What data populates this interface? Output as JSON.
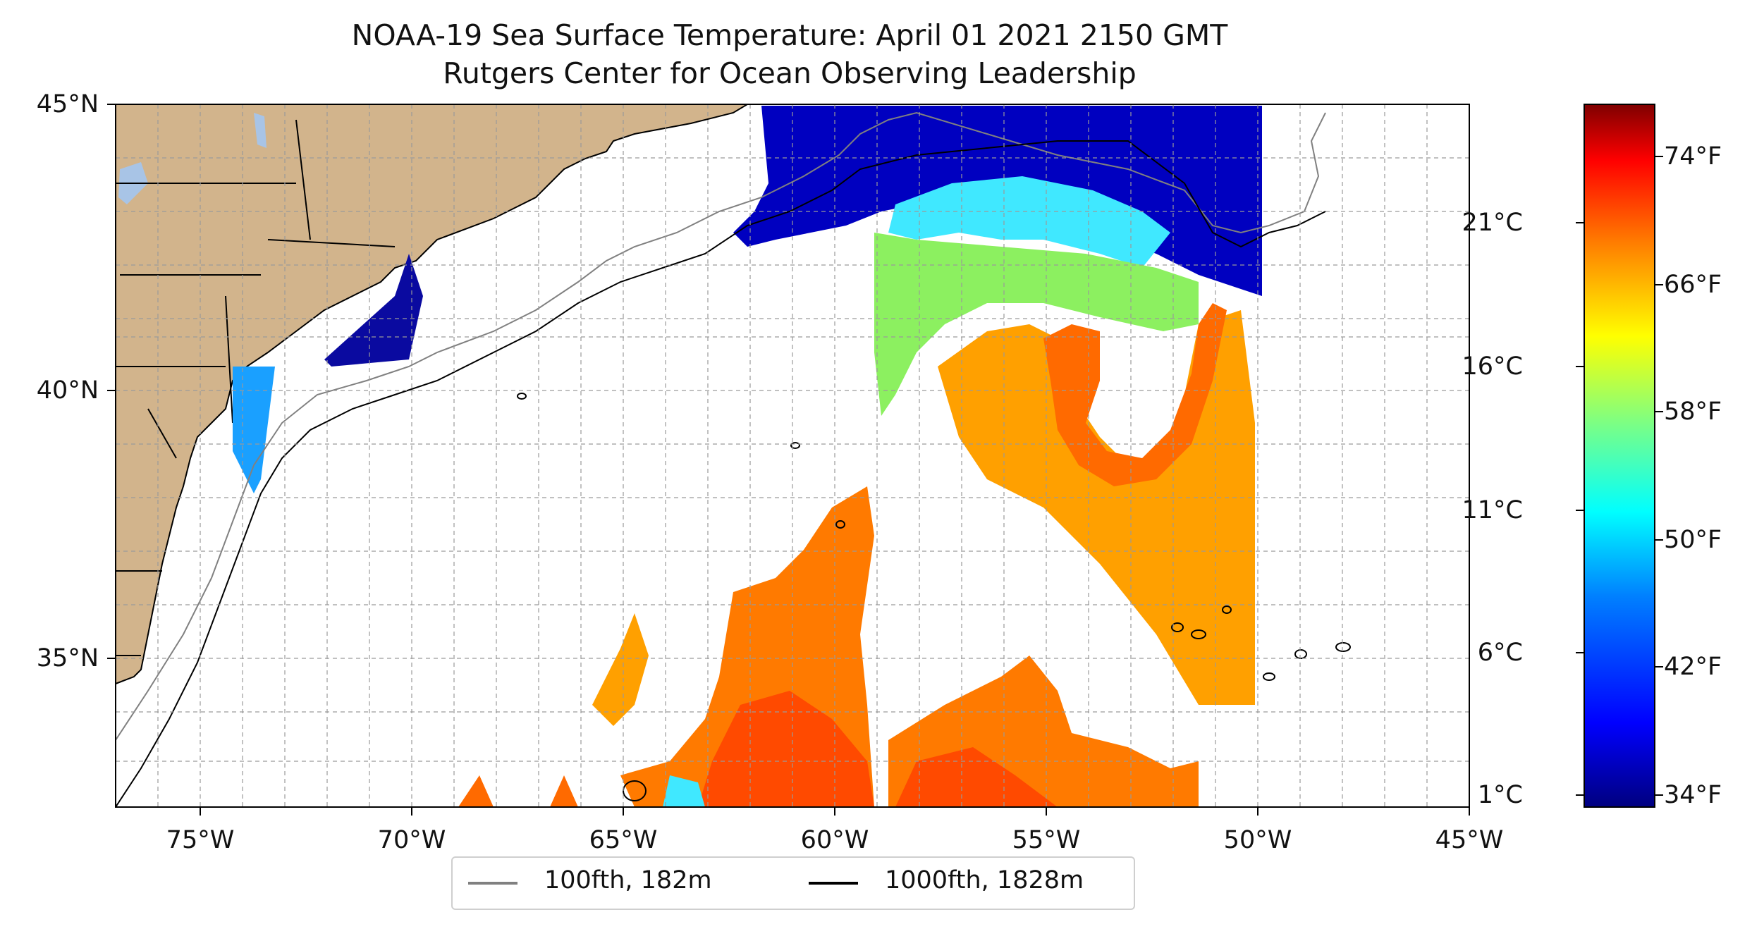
{
  "title": {
    "line1": "NOAA-19 Sea Surface Temperature: April 01 2021 2150 GMT",
    "line2": "Rutgers Center for Ocean Observing Leadership"
  },
  "map": {
    "lat_labels": [
      "45°N",
      "40°N",
      "35°N"
    ],
    "lon_labels": [
      "75°W",
      "70°W",
      "65°W",
      "60°W",
      "55°W",
      "50°W",
      "45°W"
    ],
    "extent": {
      "lon_min": -77,
      "lon_max": -45,
      "lat_min": 32.3,
      "lat_max": 45
    },
    "land_color": "#d2b48c",
    "lake_color": "#a8c4e6",
    "gridlines": true
  },
  "colorbar": {
    "celsius_labels": [
      "21°C",
      "16°C",
      "11°C",
      "6°C",
      "1°C"
    ],
    "fahrenheit_labels": [
      "74°F",
      "66°F",
      "58°F",
      "50°F",
      "42°F",
      "34°F"
    ],
    "colormap": "jet",
    "colors": [
      "#7f0000",
      "#ff0000",
      "#ff8000",
      "#ffff00",
      "#80ff80",
      "#00ffff",
      "#0080ff",
      "#0000ff",
      "#00007f"
    ]
  },
  "legend": {
    "items": [
      {
        "label": "100fth, 182m",
        "color": "#808080"
      },
      {
        "label": "1000fth, 1828m",
        "color": "#000000"
      }
    ]
  }
}
